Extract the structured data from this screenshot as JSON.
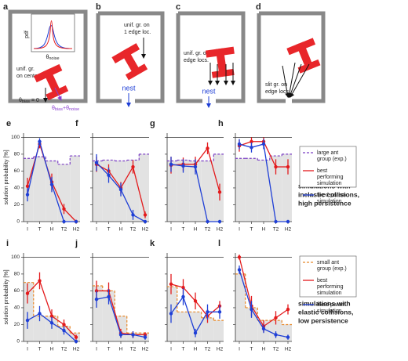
{
  "diagrams": [
    {
      "label": "a",
      "inset_ylabel": "pdf",
      "inset_xlabel": [
        {
          "t": "θ"
        },
        {
          "sub": "noise"
        }
      ],
      "caption": [
        "unif. gr.",
        "on center"
      ],
      "bias": [
        {
          "t": "θ"
        },
        {
          "sub": "bias"
        },
        {
          "t": " = 0"
        }
      ],
      "bias_noise": [
        {
          "t": "θ"
        },
        {
          "sub": "bias"
        },
        {
          "t": "+θ"
        },
        {
          "sub": "noise"
        }
      ]
    },
    {
      "label": "b",
      "caption": [
        "unif. gr. on",
        "1 edge loc."
      ],
      "nest": "nest"
    },
    {
      "label": "c",
      "caption": [
        "unif. gr. on",
        "edge locs."
      ],
      "nest": "nest"
    },
    {
      "label": "d",
      "caption": [
        "slit gr. on",
        "edge locs."
      ]
    }
  ],
  "row_notes": [
    [
      "simulations with",
      "inelastic collisions,",
      "high persistence"
    ],
    [
      "simulations with",
      "elastic collisions,",
      "low persistence"
    ]
  ],
  "chart_data": [
    {
      "type": "line",
      "label": "e",
      "ylabel": "solution probability [%]",
      "categories": [
        "I",
        "T",
        "H",
        "T2",
        "H2"
      ],
      "ylim": [
        0,
        105
      ],
      "yticks": [
        0,
        20,
        40,
        60,
        80,
        100
      ],
      "show_ytick_labels": true,
      "hline": 100,
      "series": [
        {
          "color": "#7b3fc4",
          "dash": true,
          "fill": "#e2e2e2",
          "values": [
            75,
            77,
            72,
            68,
            78
          ]
        },
        {
          "color": "#e31a1c",
          "values": [
            42,
            92,
            47,
            15,
            0
          ],
          "errors": [
            10,
            5,
            10,
            6,
            2
          ]
        },
        {
          "color": "#1f3fd6",
          "values": [
            32,
            95,
            44,
            0,
            0
          ],
          "errors": [
            8,
            4,
            9,
            0,
            0
          ]
        }
      ]
    },
    {
      "type": "line",
      "label": "f",
      "categories": [
        "I",
        "T",
        "H",
        "T2",
        "H2"
      ],
      "ylim": [
        0,
        105
      ],
      "yticks": [
        0,
        20,
        40,
        60,
        80,
        100
      ],
      "show_ytick_labels": false,
      "hline": 100,
      "series": [
        {
          "color": "#7b3fc4",
          "dash": true,
          "fill": "#e2e2e2",
          "values": [
            72,
            73,
            72,
            73,
            80
          ]
        },
        {
          "color": "#e31a1c",
          "values": [
            68,
            60,
            40,
            65,
            8
          ],
          "errors": [
            9,
            8,
            7,
            8,
            4
          ]
        },
        {
          "color": "#1f3fd6",
          "values": [
            70,
            55,
            38,
            8,
            0
          ],
          "errors": [
            10,
            9,
            8,
            6,
            0
          ]
        }
      ]
    },
    {
      "type": "line",
      "label": "g",
      "categories": [
        "I",
        "T",
        "H",
        "T2",
        "H2"
      ],
      "ylim": [
        0,
        105
      ],
      "yticks": [
        0,
        20,
        40,
        60,
        80,
        100
      ],
      "show_ytick_labels": false,
      "hline": 100,
      "series": [
        {
          "color": "#7b3fc4",
          "dash": true,
          "fill": "#e2e2e2",
          "values": [
            72,
            73,
            72,
            72,
            80
          ]
        },
        {
          "color": "#e31a1c",
          "values": [
            67,
            68,
            68,
            87,
            35
          ],
          "errors": [
            10,
            8,
            9,
            7,
            10
          ]
        },
        {
          "color": "#1f3fd6",
          "values": [
            68,
            66,
            65,
            0,
            0
          ],
          "errors": [
            9,
            8,
            9,
            0,
            0
          ]
        }
      ]
    },
    {
      "type": "line",
      "label": "h",
      "categories": [
        "I",
        "T",
        "H",
        "T2",
        "H2"
      ],
      "ylim": [
        0,
        105
      ],
      "yticks": [
        0,
        20,
        40,
        60,
        80,
        100
      ],
      "show_ytick_labels": false,
      "hline": 100,
      "legend": "right",
      "series": [
        {
          "name": "large ant group (exp.)",
          "color": "#7b3fc4",
          "dash": true,
          "fill": "#e2e2e2",
          "values": [
            75,
            75,
            73,
            78,
            80
          ]
        },
        {
          "name": "best performing simulation",
          "color": "#e31a1c",
          "values": [
            90,
            95,
            95,
            65,
            65
          ],
          "errors": [
            7,
            5,
            5,
            9,
            9
          ]
        },
        {
          "name": "fixed-param. simulation",
          "color": "#1f3fd6",
          "values": [
            92,
            88,
            92,
            0,
            0
          ],
          "errors": [
            6,
            6,
            6,
            0,
            0
          ]
        }
      ]
    },
    {
      "type": "line",
      "label": "i",
      "ylabel": "solution probability [%]",
      "categories": [
        "I",
        "T",
        "H",
        "T2",
        "H2"
      ],
      "ylim": [
        0,
        105
      ],
      "yticks": [
        0,
        20,
        40,
        60,
        80,
        100
      ],
      "show_ytick_labels": true,
      "hline": 100,
      "series": [
        {
          "color": "#e8892a",
          "dash": true,
          "fill": "#e2e2e2",
          "values": [
            70,
            30,
            30,
            18,
            10
          ]
        },
        {
          "color": "#e31a1c",
          "values": [
            57,
            72,
            30,
            20,
            5
          ],
          "errors": [
            12,
            10,
            8,
            6,
            3
          ]
        },
        {
          "color": "#1f3fd6",
          "values": [
            25,
            33,
            22,
            13,
            0
          ],
          "errors": [
            10,
            9,
            7,
            5,
            0
          ]
        }
      ]
    },
    {
      "type": "line",
      "label": "j",
      "categories": [
        "I",
        "T",
        "H",
        "T2",
        "H2"
      ],
      "ylim": [
        0,
        105
      ],
      "yticks": [
        0,
        20,
        40,
        60,
        80,
        100
      ],
      "show_ytick_labels": false,
      "hline": 100,
      "series": [
        {
          "color": "#e8892a",
          "dash": true,
          "fill": "#e2e2e2",
          "values": [
            66,
            60,
            30,
            10,
            10
          ]
        },
        {
          "color": "#e31a1c",
          "values": [
            60,
            60,
            10,
            8,
            8
          ],
          "errors": [
            12,
            10,
            5,
            4,
            3
          ]
        },
        {
          "color": "#1f3fd6",
          "values": [
            50,
            53,
            8,
            8,
            5
          ],
          "errors": [
            10,
            9,
            4,
            4,
            3
          ]
        }
      ]
    },
    {
      "type": "line",
      "label": "k",
      "categories": [
        "I",
        "T",
        "H",
        "T2",
        "H2"
      ],
      "ylim": [
        0,
        105
      ],
      "yticks": [
        0,
        20,
        40,
        60,
        80,
        100
      ],
      "show_ytick_labels": false,
      "hline": 100,
      "series": [
        {
          "color": "#e8892a",
          "dash": true,
          "fill": "#e2e2e2",
          "values": [
            65,
            35,
            35,
            28,
            25
          ]
        },
        {
          "color": "#e31a1c",
          "values": [
            68,
            64,
            48,
            30,
            42
          ],
          "errors": [
            12,
            10,
            10,
            8,
            6
          ]
        },
        {
          "color": "#1f3fd6",
          "values": [
            33,
            53,
            10,
            35,
            35
          ],
          "errors": [
            11,
            10,
            5,
            9,
            8
          ]
        }
      ]
    },
    {
      "type": "line",
      "label": "l",
      "categories": [
        "I",
        "T",
        "H",
        "T2",
        "H2"
      ],
      "ylim": [
        0,
        105
      ],
      "yticks": [
        0,
        20,
        40,
        60,
        80,
        100
      ],
      "show_ytick_labels": false,
      "hline": 100,
      "legend": "right",
      "series": [
        {
          "name": "small ant group (exp.)",
          "color": "#e8892a",
          "dash": true,
          "fill": "#e2e2e2",
          "values": [
            80,
            40,
            25,
            25,
            20
          ]
        },
        {
          "name": "best performing simulation",
          "color": "#e31a1c",
          "values": [
            100,
            42,
            18,
            28,
            38
          ],
          "errors": [
            3,
            12,
            7,
            8,
            6
          ]
        },
        {
          "name": "fixed-param. simulation",
          "color": "#1f3fd6",
          "values": [
            85,
            38,
            15,
            8,
            5
          ],
          "errors": [
            5,
            10,
            5,
            4,
            3
          ]
        }
      ]
    }
  ]
}
